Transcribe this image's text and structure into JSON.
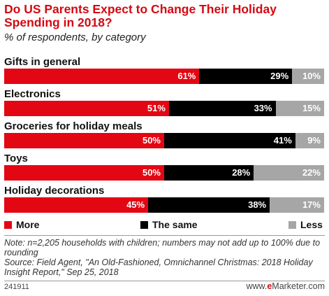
{
  "title": "Do US Parents Expect to Change Their Holiday Spending in 2018?",
  "subtitle": "% of respondents, by category",
  "colors": {
    "more": "#e30613",
    "same": "#000000",
    "less": "#a6a6a6",
    "title": "#d30a11"
  },
  "chart_data": {
    "type": "bar",
    "orientation": "horizontal",
    "stacked": true,
    "categories": [
      "Gifts in general",
      "Electronics",
      "Groceries for holiday meals",
      "Toys",
      "Holiday decorations"
    ],
    "series": [
      {
        "name": "More",
        "values": [
          61,
          51,
          50,
          50,
          45
        ],
        "labels": [
          "61%",
          "51%",
          "50%",
          "50%",
          "45%"
        ]
      },
      {
        "name": "The same",
        "values": [
          29,
          33,
          41,
          28,
          38
        ],
        "labels": [
          "29%",
          "33%",
          "41%",
          "28%",
          "38%"
        ]
      },
      {
        "name": "Less",
        "values": [
          10,
          15,
          9,
          22,
          17
        ],
        "labels": [
          "10%",
          "15%",
          "9%",
          "22%",
          "17%"
        ]
      }
    ],
    "xlim": [
      0,
      100
    ],
    "grid": false,
    "legend_position": "bottom"
  },
  "legend": {
    "more": "More",
    "same": "The same",
    "less": "Less"
  },
  "note_line1": "Note: n=2,205 households with children; numbers may not add up to 100% due to rounding",
  "source": "Source: Field Agent, \"An Old-Fashioned, Omnichannel Christmas: 2018 Holiday Insight Report,\" Sep 25, 2018",
  "chart_id": "241911",
  "brand": {
    "prefix": "www.",
    "e": "e",
    "rest": "Marketer.com"
  }
}
